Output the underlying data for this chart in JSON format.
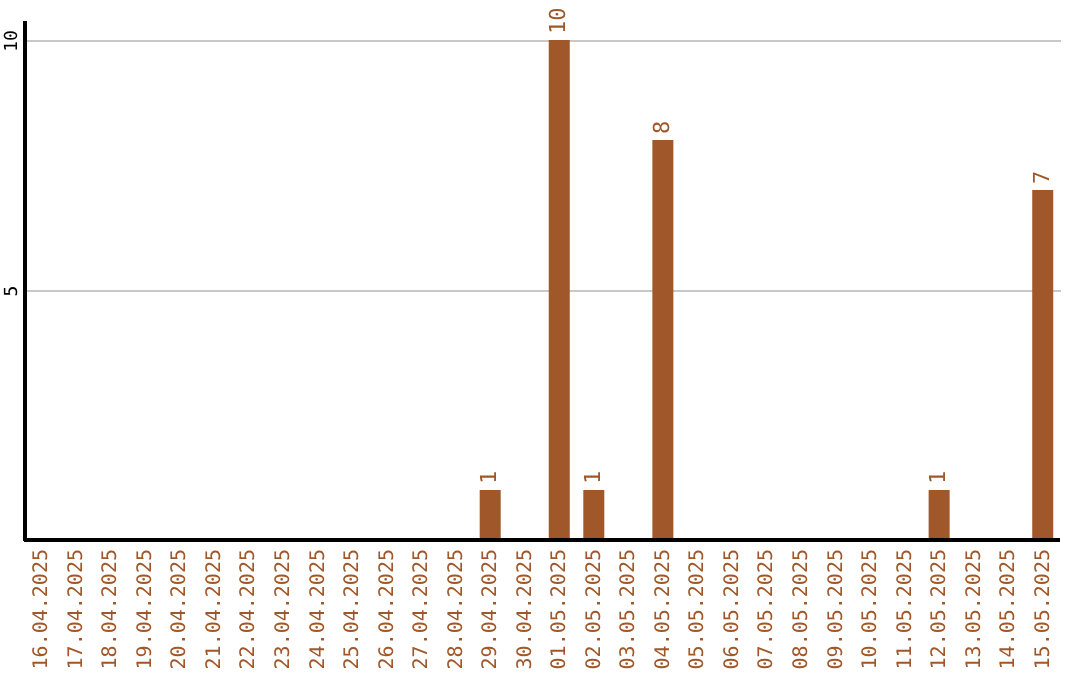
{
  "chart_data": {
    "type": "bar",
    "categories": [
      "16.04.2025",
      "17.04.2025",
      "18.04.2025",
      "19.04.2025",
      "20.04.2025",
      "21.04.2025",
      "22.04.2025",
      "23.04.2025",
      "24.04.2025",
      "25.04.2025",
      "26.04.2025",
      "27.04.2025",
      "28.04.2025",
      "29.04.2025",
      "30.04.2025",
      "01.05.2025",
      "02.05.2025",
      "03.05.2025",
      "04.05.2025",
      "05.05.2025",
      "06.05.2025",
      "07.05.2025",
      "08.05.2025",
      "09.05.2025",
      "10.05.2025",
      "11.05.2025",
      "12.05.2025",
      "13.05.2025",
      "14.05.2025",
      "15.05.2025"
    ],
    "values": [
      0,
      0,
      0,
      0,
      0,
      0,
      0,
      0,
      0,
      0,
      0,
      0,
      0,
      1,
      0,
      10,
      1,
      0,
      8,
      0,
      0,
      0,
      0,
      0,
      0,
      0,
      1,
      0,
      0,
      7
    ],
    "value_labels": [
      null,
      null,
      null,
      null,
      null,
      null,
      null,
      null,
      null,
      null,
      null,
      null,
      null,
      "1",
      null,
      "10",
      "1",
      null,
      "8",
      null,
      null,
      null,
      null,
      null,
      null,
      null,
      "1",
      null,
      null,
      "7"
    ],
    "color": "#a0582a",
    "ylim": [
      0,
      10.4
    ],
    "yticks": [
      5,
      10
    ],
    "grid": "y"
  }
}
